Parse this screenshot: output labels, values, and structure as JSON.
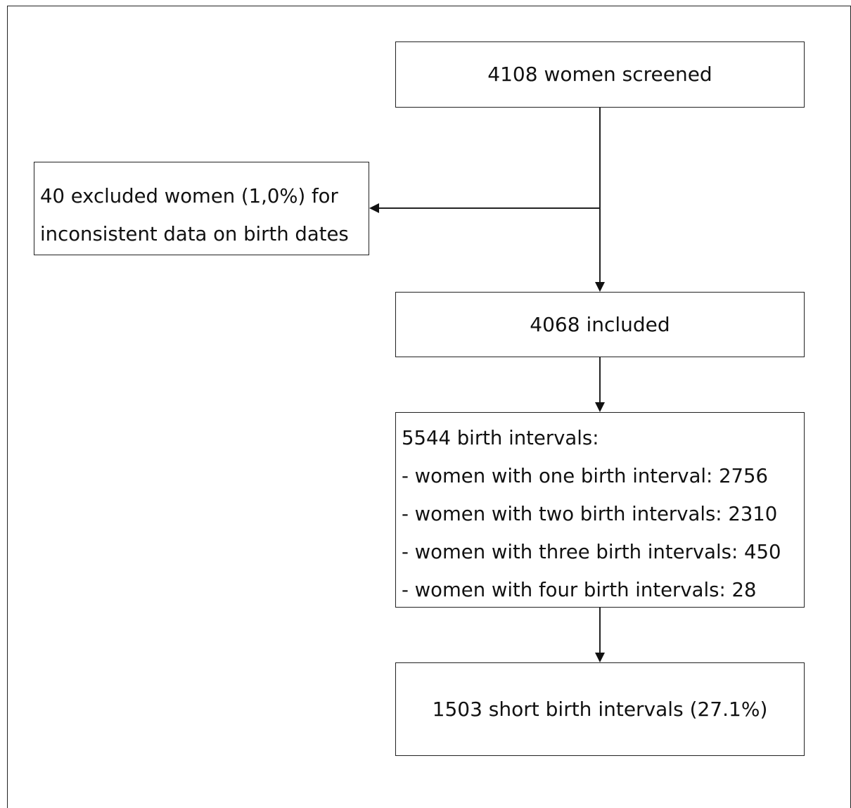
{
  "flowchart": {
    "screened": "4108 women screened",
    "excluded": {
      "line1": "40 excluded women (1,0%) for",
      "line2": "inconsistent data on birth dates"
    },
    "included": "4068 included",
    "intervals": {
      "heading": "5544 birth intervals:",
      "items": [
        "- women with one birth interval: 2756",
        "- women with two birth intervals: 2310",
        "- women with three birth intervals: 450",
        "- women with four birth intervals: 28"
      ]
    },
    "short": "1503 short birth intervals (27.1%)"
  },
  "colors": {
    "line": "#222222",
    "text": "#111111",
    "background": "#ffffff"
  }
}
